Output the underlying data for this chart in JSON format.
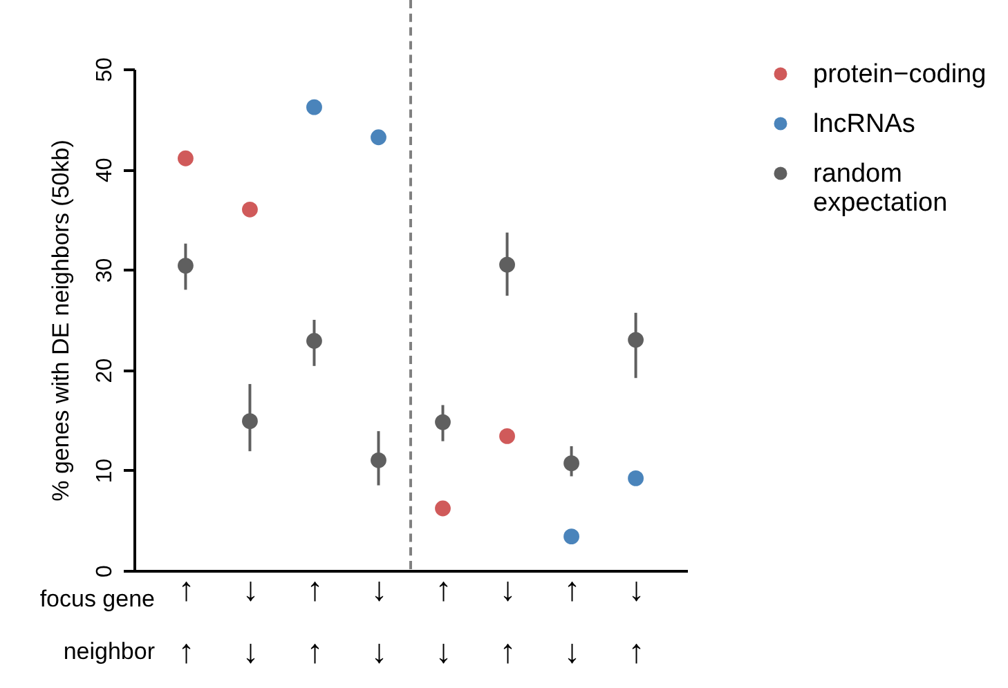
{
  "chart_data": {
    "type": "scatter",
    "ylabel": "% genes with DE neighbors (50kb)",
    "categories": [
      "↑\n↑",
      "↓\n↓",
      "↑\n↑",
      "↓\n↓",
      "↑\n↓",
      "↓\n↑",
      "↑\n↓",
      "↓\n↑"
    ],
    "ylim": [
      0,
      50
    ],
    "yticks": [
      0,
      10,
      20,
      30,
      40,
      50
    ],
    "series": [
      {
        "name": "protein−coding",
        "color": "#d05a5a",
        "values": [
          41.1,
          36.0,
          null,
          null,
          6.2,
          13.4,
          null,
          null
        ]
      },
      {
        "name": "lncRNAs",
        "color": "#4a84bb",
        "values": [
          null,
          null,
          46.2,
          43.2,
          null,
          null,
          3.4,
          9.2
        ]
      },
      {
        "name": "random expectation",
        "color": "#5f5f5f",
        "values": [
          30.4,
          14.9,
          22.9,
          11.0,
          14.8,
          30.5,
          10.7,
          23.0
        ],
        "errors": [
          [
            28.0,
            32.6
          ],
          [
            11.9,
            18.6
          ],
          [
            20.4,
            25.0
          ],
          [
            8.5,
            13.9
          ],
          [
            12.9,
            16.5
          ],
          [
            27.4,
            33.7
          ],
          [
            9.4,
            12.4
          ],
          [
            19.2,
            25.7
          ]
        ]
      }
    ],
    "annotations": [
      "focus gene",
      "neighbor"
    ],
    "legend": "top right",
    "grid": false,
    "marker": "circle"
  }
}
